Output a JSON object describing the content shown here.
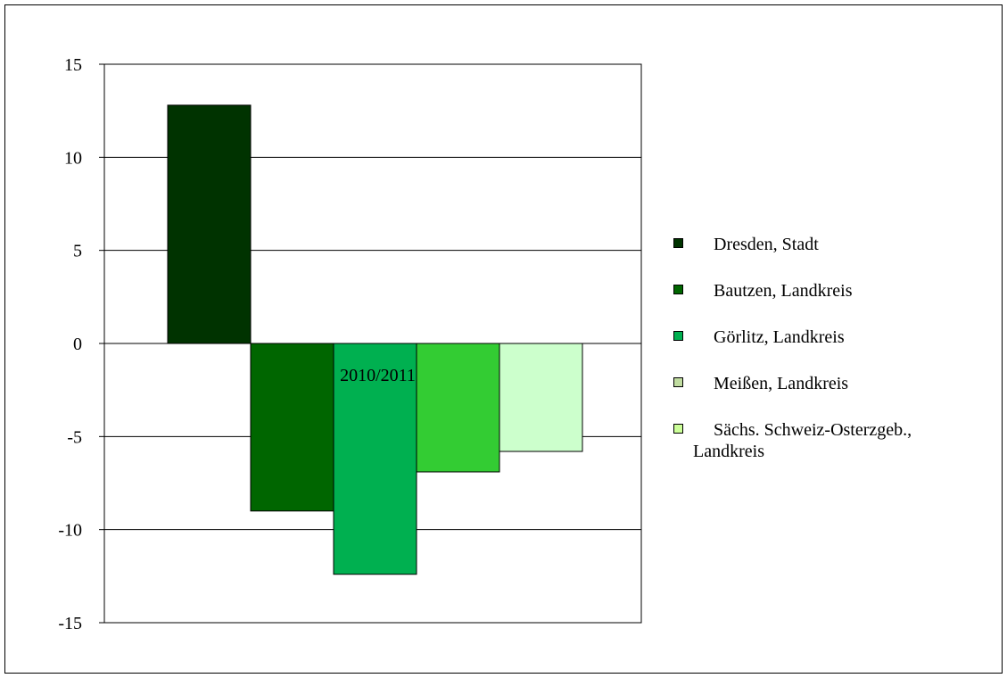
{
  "chart_data": {
    "type": "bar",
    "categories": [
      "2010/2011"
    ],
    "series": [
      {
        "name": "Dresden, Stadt",
        "values": [
          12.8
        ],
        "color": "#003300"
      },
      {
        "name": "Bautzen, Landkreis",
        "values": [
          -9.0
        ],
        "color": "#006600"
      },
      {
        "name": "Görlitz, Landkreis",
        "values": [
          -12.4
        ],
        "color": "#00b050"
      },
      {
        "name": "Meißen, Landkreis",
        "values": [
          -6.9
        ],
        "color": "#33cc33"
      },
      {
        "name": "Sächs. Schweiz-Osterzgeb., Landkreis",
        "values": [
          -5.8
        ],
        "color": "#ccffcc"
      }
    ],
    "legend_swatch_colors": [
      "#003300",
      "#006600",
      "#00b050",
      "#c0dca0",
      "#ccff99"
    ],
    "ylim": [
      -15,
      15
    ],
    "yticks": [
      "15",
      "10",
      "5",
      "0",
      "-5",
      "-10",
      "-15"
    ],
    "ytick_values": [
      15,
      10,
      5,
      0,
      -5,
      -10,
      -15
    ],
    "grid": true,
    "legend_position": "right",
    "title": "",
    "xlabel": "",
    "ylabel": ""
  },
  "legend": {
    "items": [
      {
        "label": "Dresden, Stadt"
      },
      {
        "label": "Bautzen, Landkreis"
      },
      {
        "label": "Görlitz, Landkreis"
      },
      {
        "label": "Meißen, Landkreis"
      },
      {
        "label_line1": "Sächs. Schweiz-Osterzgeb.,",
        "label_line2": "Landkreis"
      }
    ]
  }
}
